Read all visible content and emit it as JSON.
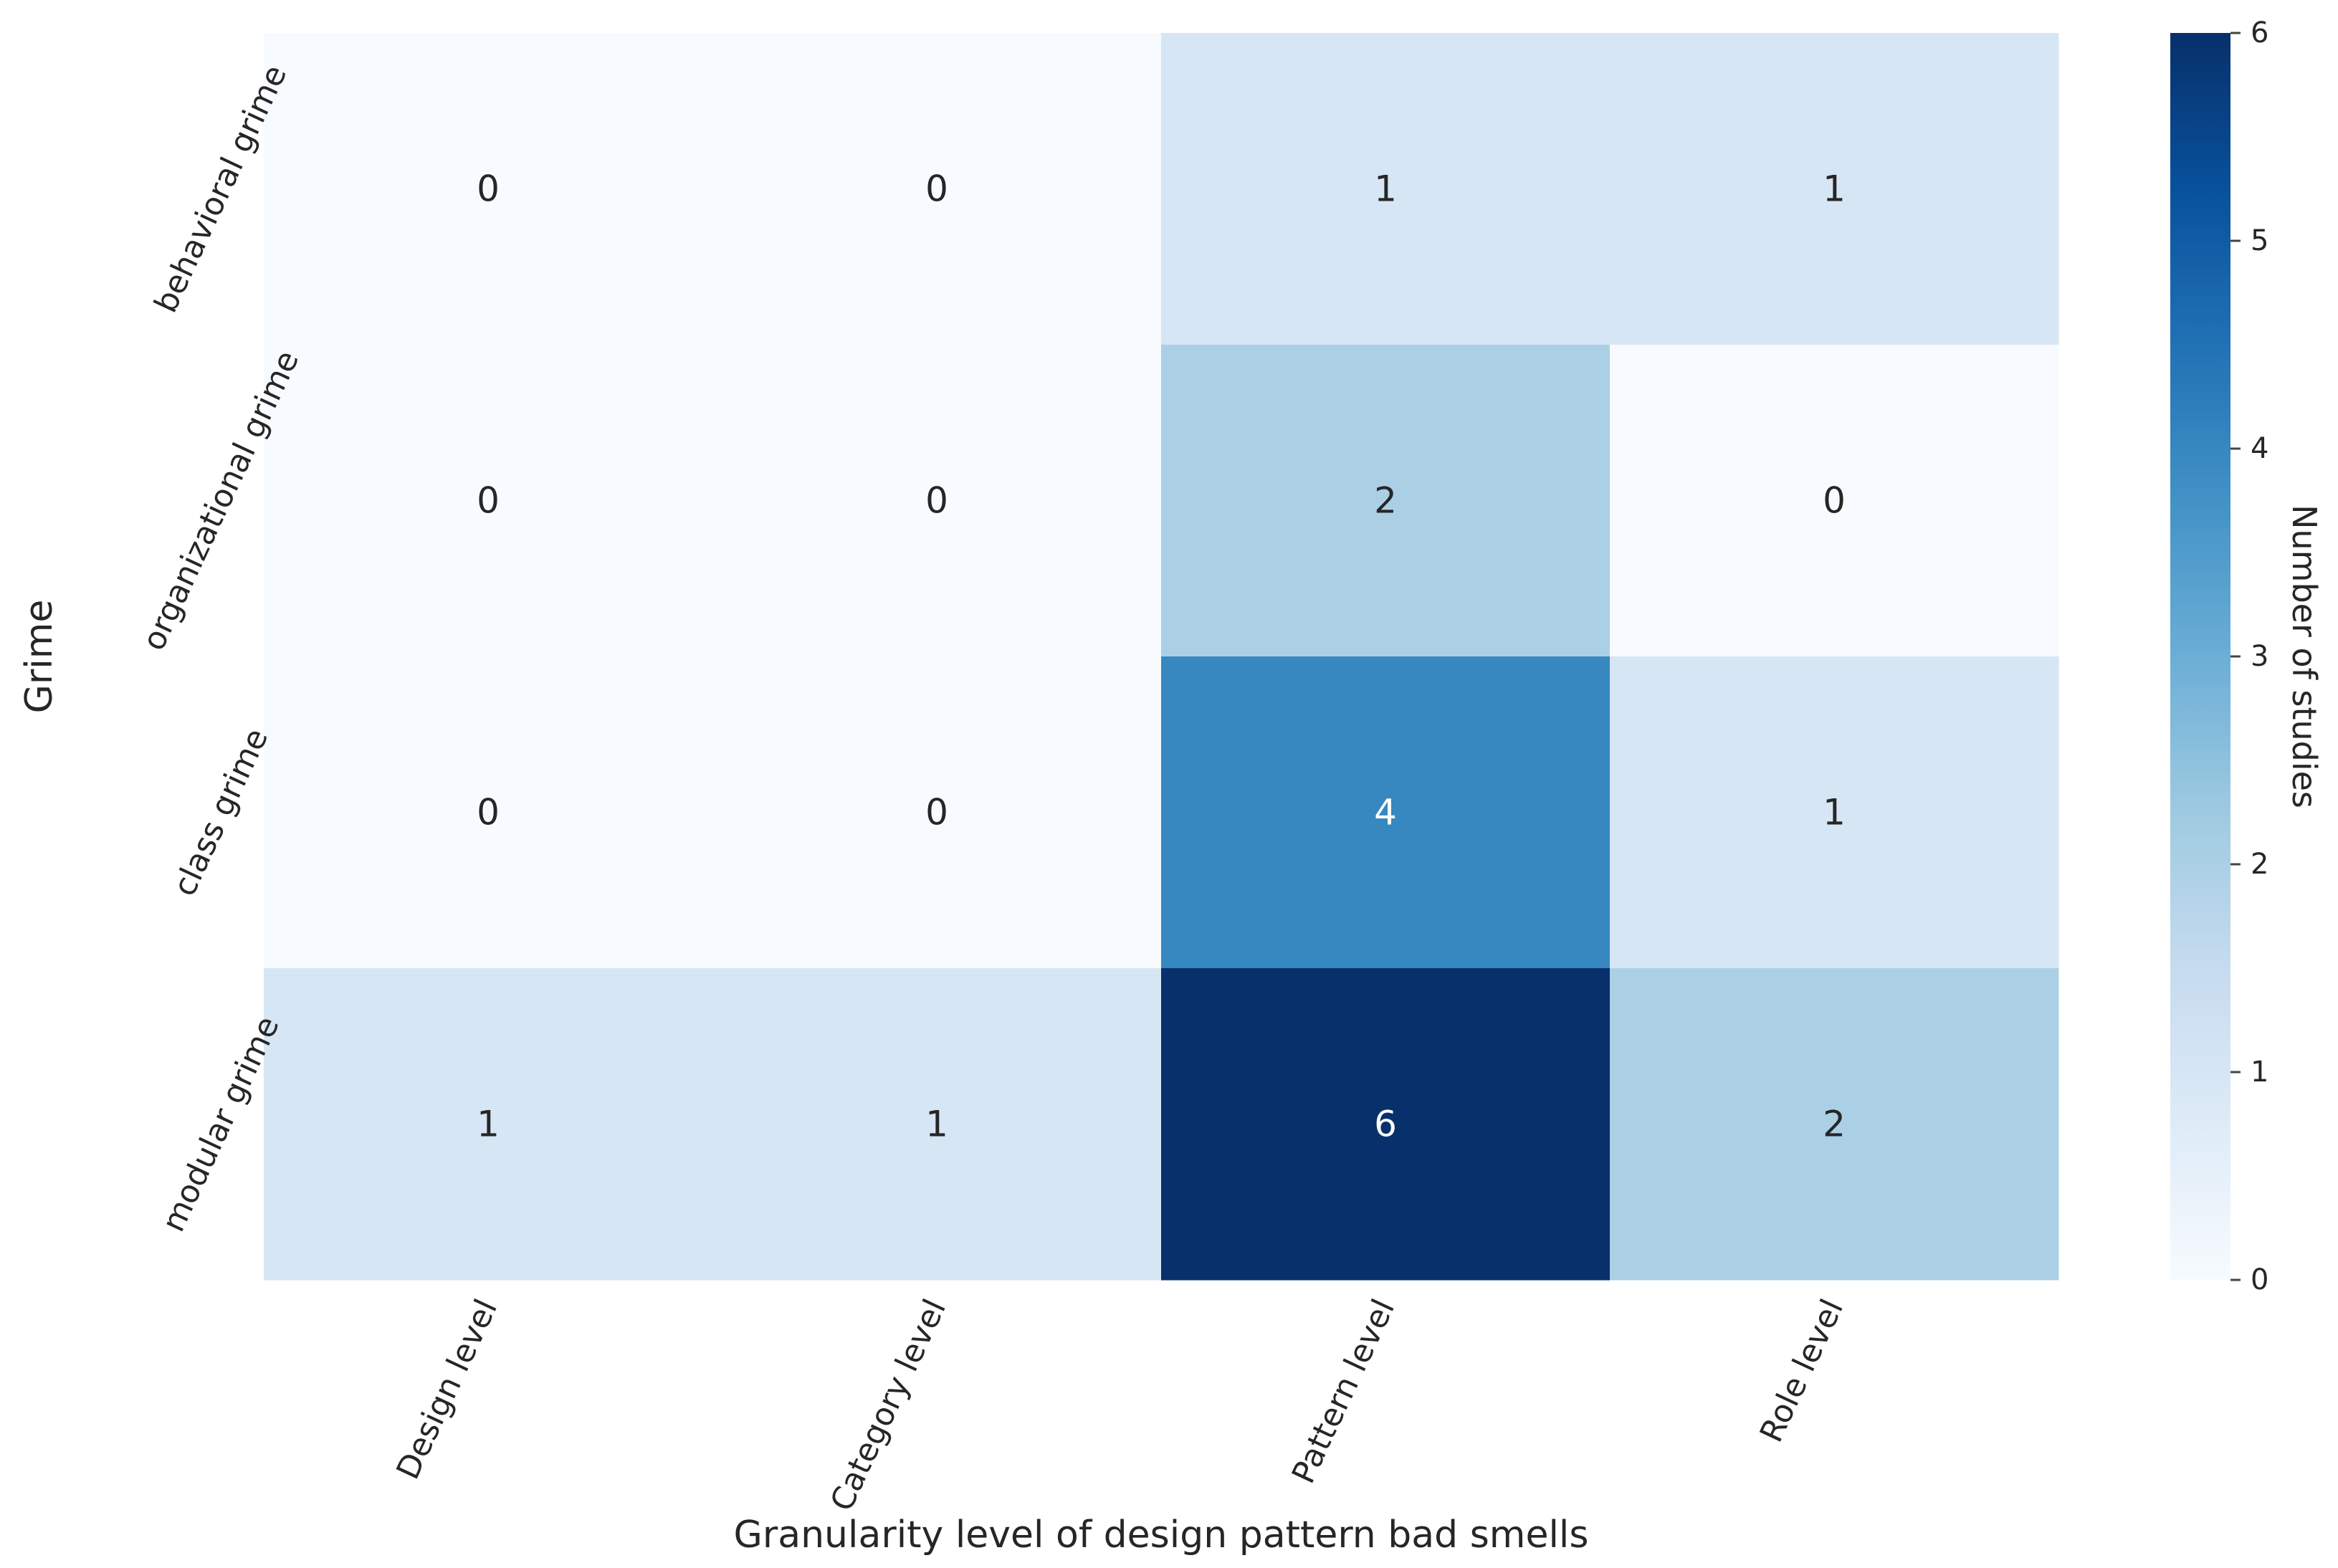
{
  "chart_data": {
    "type": "heatmap",
    "title": "",
    "xlabel": "Granularity level of design pattern bad smells",
    "ylabel": "Grime",
    "x_categories": [
      "Design level",
      "Category level",
      "Pattern level",
      "Role level"
    ],
    "y_categories": [
      "behavioral grime",
      "organizational grime",
      "class grime",
      "modular grime"
    ],
    "values": [
      [
        0,
        0,
        1,
        1
      ],
      [
        0,
        0,
        2,
        0
      ],
      [
        0,
        0,
        4,
        1
      ],
      [
        1,
        1,
        6,
        2
      ]
    ],
    "colorbar": {
      "label": "Number of studies",
      "range": [
        0,
        6
      ],
      "ticks": [
        "0",
        "1",
        "2",
        "3",
        "4",
        "5",
        "6"
      ],
      "colormap": "Blues",
      "colors": [
        "#f7fbff",
        "#deebf7",
        "#c6dbef",
        "#9ecae1",
        "#6baed6",
        "#4292c6",
        "#2171b5",
        "#08519c",
        "#08306b"
      ]
    }
  }
}
